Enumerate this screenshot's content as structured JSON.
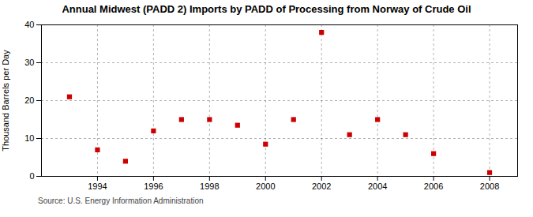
{
  "chart_data": {
    "type": "scatter",
    "title": "Annual Midwest (PADD 2) Imports by PADD of Processing from Norway of Crude Oil",
    "ylabel": "Thousand Barrels per Day",
    "annotations": [
      "Source: U.S. Energy Information Administration"
    ],
    "x": [
      1993,
      1994,
      1995,
      1996,
      1997,
      1998,
      1999,
      2000,
      2001,
      2002,
      2003,
      2004,
      2005,
      2006,
      2008
    ],
    "values": [
      21,
      7,
      4,
      12,
      15,
      15,
      13.5,
      8.5,
      15,
      38,
      11,
      15,
      11,
      6,
      1
    ],
    "color": "#cc0000",
    "marker": "square",
    "xlim": [
      1992.0,
      2009.0
    ],
    "ylim": [
      0,
      40
    ],
    "xticks": [
      1994,
      1996,
      1998,
      2000,
      2002,
      2004,
      2006,
      2008
    ],
    "yticks": [
      0,
      10,
      20,
      30,
      40
    ],
    "grid": true
  }
}
